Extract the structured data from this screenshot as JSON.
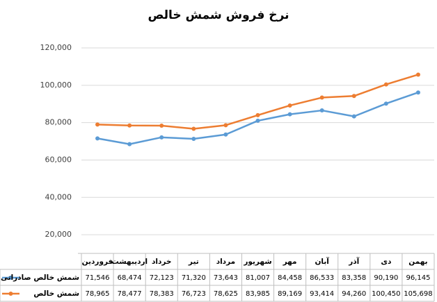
{
  "chart_data": {
    "type": "line",
    "title": "نرخ فروش شمش خالص",
    "categories": [
      "فروردین",
      "اردیبهشت",
      "خرداد",
      "تیر",
      "مرداد",
      "شهریور",
      "مهر",
      "آبان",
      "آذر",
      "دی",
      "بهمن"
    ],
    "series": [
      {
        "name": "شمش خالص صادراتی",
        "color": "#5b9bd5",
        "values": [
          71546,
          68474,
          72123,
          71320,
          73643,
          81007,
          84458,
          86533,
          83358,
          90190,
          96145
        ],
        "value_labels": [
          "71,546",
          "68,474",
          "72,123",
          "71,320",
          "73,643",
          "81,007",
          "84,458",
          "86,533",
          "83,358",
          "90,190",
          "96,145"
        ]
      },
      {
        "name": "شمش خالص",
        "color": "#ed7d31",
        "values": [
          78965,
          78477,
          78383,
          76723,
          78625,
          83985,
          89169,
          93414,
          94260,
          100450,
          105698
        ],
        "value_labels": [
          "78,965",
          "78,477",
          "78,383",
          "76,723",
          "78,625",
          "83,985",
          "89,169",
          "93,414",
          "94,260",
          "100,450",
          "105,698"
        ]
      }
    ],
    "ylim": [
      10000,
      120000
    ],
    "yticks": [
      {
        "value": 20000,
        "label": "20,000"
      },
      {
        "value": 40000,
        "label": "40,000"
      },
      {
        "value": 60000,
        "label": "60,000"
      },
      {
        "value": 80000,
        "label": "80,000"
      },
      {
        "value": 100000,
        "label": "100,000"
      },
      {
        "value": 120000,
        "label": "120,000"
      }
    ],
    "grid": true
  }
}
